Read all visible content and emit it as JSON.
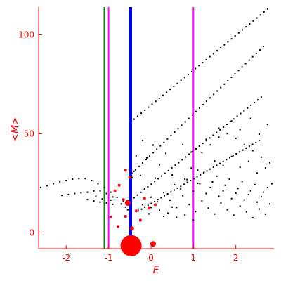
{
  "chart_data": {
    "type": "scatter",
    "title": "",
    "xlabel": "E",
    "ylabel": "<M>",
    "xlim": [
      -2.65,
      2.9
    ],
    "ylim": [
      -8,
      114
    ],
    "xticks": [
      -2,
      -1,
      0,
      1,
      2
    ],
    "xtick_labels": [
      "-2",
      "-1",
      "0",
      "1",
      "2"
    ],
    "yticks": [
      0,
      50,
      100
    ],
    "ytick_labels": [
      "0",
      "50",
      "100"
    ],
    "grid": false,
    "colors": {
      "axis": "#ff0000",
      "points": "#000000",
      "highlight": "#ff0000",
      "line_green": "#008000",
      "line_magenta": "#ff00ff",
      "line_blue": "#0000ff"
    },
    "vertical_lines": [
      {
        "x": -1.1,
        "color": "#008000",
        "width": 2
      },
      {
        "x": -1.0,
        "color": "#ff00ff",
        "width": 2
      },
      {
        "x": -0.48,
        "color": "#0000ff",
        "width": 4
      },
      {
        "x": 1.0,
        "color": "#ff00ff",
        "width": 2
      }
    ],
    "bands": [
      {
        "x0": -0.4,
        "x1": 2.75,
        "y0": 57.4,
        "y1": 113.0
      },
      {
        "x0": -0.45,
        "x1": 2.65,
        "y0": 30.1,
        "y1": 94.1
      },
      {
        "x0": -0.4,
        "x1": 2.6,
        "y0": 17.7,
        "y1": 68.5
      },
      {
        "x0": -0.3,
        "x1": 2.55,
        "y0": 11.0,
        "y1": 46.6
      }
    ],
    "arch_points": [
      [
        -2.6,
        22.9
      ],
      [
        -2.45,
        23.8
      ],
      [
        -2.3,
        24.8
      ],
      [
        -2.15,
        25.7
      ],
      [
        -2.0,
        26.4
      ],
      [
        -1.85,
        27.1
      ],
      [
        -1.7,
        27.4
      ],
      [
        -1.55,
        27.4
      ],
      [
        -1.4,
        26.4
      ],
      [
        -1.25,
        24.8
      ],
      [
        -1.1,
        22.9
      ],
      [
        -0.95,
        20.5
      ],
      [
        -0.8,
        17.9
      ],
      [
        -0.65,
        15.8
      ],
      [
        -2.1,
        18.9
      ],
      [
        -1.95,
        19.3
      ],
      [
        -1.8,
        19.8
      ],
      [
        -1.65,
        20.2
      ],
      [
        -1.5,
        20.5
      ],
      [
        -1.35,
        21.1
      ],
      [
        -1.2,
        21.2
      ],
      [
        -1.05,
        19.8
      ],
      [
        -0.9,
        18.1
      ],
      [
        -1.5,
        16.8
      ],
      [
        -1.35,
        16.1
      ],
      [
        -1.2,
        15.5
      ],
      [
        -1.05,
        15.1
      ],
      [
        -0.9,
        14.4
      ]
    ],
    "cloud_points": [
      [
        -0.35,
        38.9
      ],
      [
        -0.2,
        46.6
      ],
      [
        -0.1,
        37.8
      ],
      [
        0.05,
        44.3
      ],
      [
        0.2,
        34.3
      ],
      [
        0.35,
        40.1
      ],
      [
        0.5,
        29.2
      ],
      [
        0.65,
        35.4
      ],
      [
        0.8,
        27.1
      ],
      [
        0.95,
        32.7
      ],
      [
        1.1,
        25.0
      ],
      [
        1.25,
        30.5
      ],
      [
        1.4,
        22.9
      ],
      [
        1.55,
        28.6
      ],
      [
        1.7,
        21.2
      ],
      [
        1.85,
        27.1
      ],
      [
        2.0,
        20.0
      ],
      [
        2.15,
        25.9
      ],
      [
        2.3,
        19.3
      ],
      [
        2.45,
        24.3
      ],
      [
        2.6,
        18.2
      ],
      [
        2.75,
        22.9
      ],
      [
        -0.15,
        22.4
      ],
      [
        0.0,
        18.0
      ],
      [
        0.15,
        15.7
      ],
      [
        0.3,
        20.3
      ],
      [
        0.45,
        16.5
      ],
      [
        0.6,
        12.8
      ],
      [
        0.75,
        18.7
      ],
      [
        0.9,
        14.3
      ],
      [
        1.05,
        10.7
      ],
      [
        1.2,
        16.2
      ],
      [
        1.35,
        12.5
      ],
      [
        1.5,
        9.5
      ],
      [
        1.65,
        15.1
      ],
      [
        1.8,
        11.6
      ],
      [
        1.95,
        8.9
      ],
      [
        2.1,
        13.5
      ],
      [
        2.25,
        10.6
      ],
      [
        2.4,
        7.6
      ],
      [
        2.55,
        12.0
      ],
      [
        2.7,
        9.4
      ],
      [
        1.2,
        40.5
      ],
      [
        1.4,
        44.4
      ],
      [
        1.6,
        48.3
      ],
      [
        1.8,
        50.1
      ],
      [
        2.0,
        47.7
      ],
      [
        2.2,
        44.6
      ],
      [
        2.4,
        41.5
      ],
      [
        2.6,
        38.2
      ],
      [
        2.8,
        35.4
      ],
      [
        1.5,
        36.3
      ],
      [
        1.7,
        34.0
      ],
      [
        1.9,
        38.5
      ],
      [
        2.1,
        33.1
      ],
      [
        2.3,
        36.1
      ],
      [
        2.5,
        30.2
      ],
      [
        2.7,
        32.8
      ],
      [
        1.0,
        21.0
      ],
      [
        1.15,
        24.8
      ],
      [
        1.3,
        19.8
      ],
      [
        1.45,
        25.7
      ],
      [
        1.6,
        18.5
      ],
      [
        1.75,
        24.0
      ],
      [
        1.9,
        17.3
      ],
      [
        2.05,
        22.4
      ],
      [
        2.2,
        16.6
      ],
      [
        2.35,
        21.2
      ],
      [
        2.5,
        15.5
      ],
      [
        2.65,
        20.5
      ],
      [
        2.8,
        14.6
      ],
      [
        2.85,
        24.8
      ],
      [
        0.55,
        24.3
      ],
      [
        0.7,
        22.1
      ],
      [
        0.85,
        26.9
      ],
      [
        0.1,
        27.6
      ],
      [
        -0.25,
        29.0
      ],
      [
        -0.4,
        31.1
      ],
      [
        -0.45,
        27.9
      ],
      [
        0.4,
        9.9
      ],
      [
        0.6,
        7.8
      ],
      [
        0.8,
        9.0
      ],
      [
        1.0,
        6.4
      ],
      [
        0.2,
        11.4
      ],
      [
        0.0,
        12.8
      ],
      [
        -0.2,
        14.2
      ],
      [
        -0.3,
        12.0
      ],
      [
        -0.05,
        9.6
      ],
      [
        0.3,
        8.3
      ],
      [
        0.5,
        13.0
      ],
      [
        1.1,
        31.6
      ],
      [
        0.95,
        40.8
      ],
      [
        0.75,
        44.6
      ],
      [
        1.3,
        47.2
      ],
      [
        1.6,
        52.8
      ],
      [
        1.9,
        56.5
      ],
      [
        2.1,
        52.1
      ],
      [
        2.35,
        57.8
      ],
      [
        2.55,
        49.8
      ],
      [
        2.75,
        54.7
      ],
      [
        -1.3,
        18.5
      ],
      [
        -1.15,
        17.1
      ],
      [
        -0.95,
        16.5
      ],
      [
        -0.7,
        14.6
      ],
      [
        -0.6,
        13.0
      ],
      [
        -0.55,
        11.6
      ]
    ],
    "highlight_points": [
      {
        "x": -0.47,
        "y": -6.5,
        "r": 15
      },
      {
        "x": 0.05,
        "y": -5.6,
        "r": 4
      },
      {
        "x": -0.55,
        "y": 15.1,
        "r": 4
      },
      {
        "x": -0.45,
        "y": 2.2,
        "r": 3
      },
      {
        "x": -0.6,
        "y": 31.6,
        "r": 2
      },
      {
        "x": -0.75,
        "y": 24.0,
        "r": 2
      },
      {
        "x": -0.85,
        "y": 21.2,
        "r": 2
      },
      {
        "x": -0.5,
        "y": 28.0,
        "r": 2
      },
      {
        "x": -0.6,
        "y": 8.3,
        "r": 2
      },
      {
        "x": -0.78,
        "y": 3.2,
        "r": 2
      },
      {
        "x": -0.35,
        "y": 11.0,
        "r": 2
      },
      {
        "x": -0.25,
        "y": 6.4,
        "r": 2
      },
      {
        "x": -0.15,
        "y": 17.5,
        "r": 2
      },
      {
        "x": -0.05,
        "y": 12.5,
        "r": 2
      },
      {
        "x": 0.1,
        "y": 14.2,
        "r": 2
      },
      {
        "x": -0.95,
        "y": 8.0,
        "r": 2
      },
      {
        "x": -0.65,
        "y": 16.8,
        "r": 2
      }
    ]
  }
}
